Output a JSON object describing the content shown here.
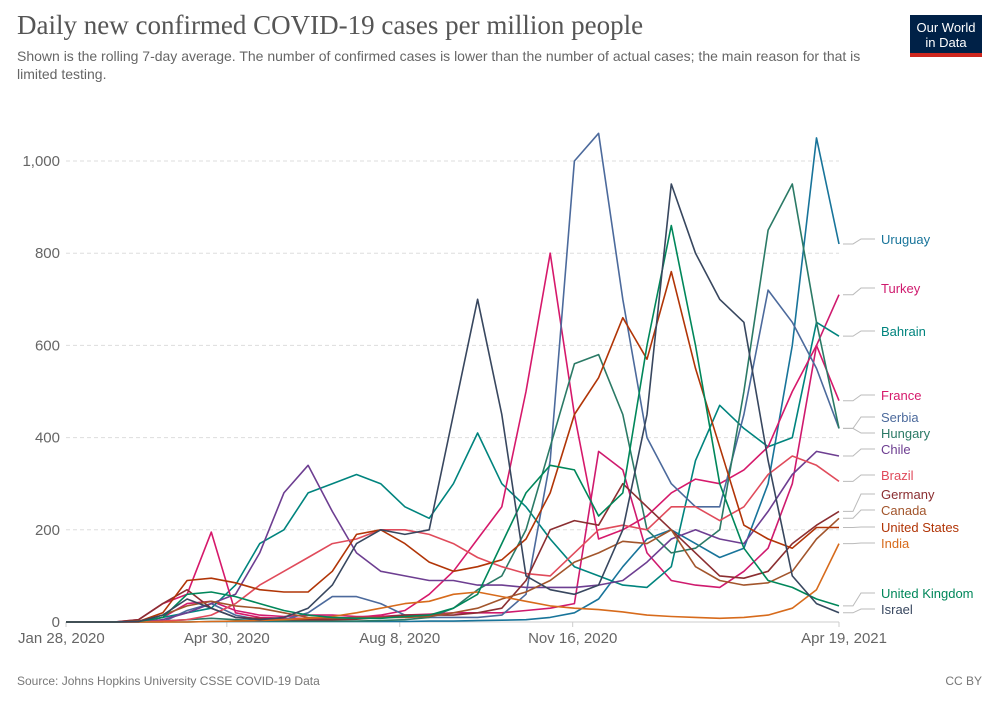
{
  "header": {
    "title": "Daily new confirmed COVID-19 cases per million people",
    "subtitle": "Shown is the rolling 7-day average. The number of confirmed cases is lower than the number of actual cases; the main reason for that is limited testing.",
    "logo": "Our World in Data"
  },
  "footer": {
    "source": "Source: Johns Hopkins University CSSE COVID-19 Data",
    "license": "CC BY"
  },
  "chart_data": {
    "type": "line",
    "title": "Daily new confirmed COVID-19 cases per million people",
    "ylim": [
      0,
      1150
    ],
    "yticks": [
      0,
      200,
      400,
      600,
      800,
      1000
    ],
    "ytick_labels": [
      "0",
      "200",
      "400",
      "600",
      "800",
      "1,000"
    ],
    "xticks": [
      "2020-01-28",
      "2020-04-30",
      "2020-08-08",
      "2020-11-16",
      "2021-04-19"
    ],
    "xtick_labels": [
      "Jan 28, 2020",
      "Apr 30, 2020",
      "Aug 8, 2020",
      "Nov 16, 2020",
      "Apr 19, 2021"
    ],
    "grid": "horizontal dashed",
    "legend": "right, end-of-line labels",
    "x": [
      "2020-01-28",
      "2020-02-11",
      "2020-02-25",
      "2020-03-10",
      "2020-03-24",
      "2020-04-07",
      "2020-04-21",
      "2020-05-05",
      "2020-05-19",
      "2020-06-02",
      "2020-06-16",
      "2020-06-30",
      "2020-07-14",
      "2020-07-28",
      "2020-08-11",
      "2020-08-25",
      "2020-09-08",
      "2020-09-22",
      "2020-10-06",
      "2020-10-20",
      "2020-11-03",
      "2020-11-17",
      "2020-12-01",
      "2020-12-15",
      "2020-12-29",
      "2021-01-12",
      "2021-01-26",
      "2021-02-09",
      "2021-02-23",
      "2021-03-09",
      "2021-03-23",
      "2021-04-06",
      "2021-04-19"
    ],
    "series": [
      {
        "name": "Uruguay",
        "color": "#18749a",
        "values": [
          0,
          0,
          0,
          0,
          0,
          0,
          1,
          1,
          1,
          1,
          1,
          1,
          1,
          1,
          1,
          2,
          2,
          3,
          4,
          5,
          10,
          20,
          50,
          120,
          180,
          200,
          170,
          140,
          160,
          300,
          600,
          1050,
          820
        ]
      },
      {
        "name": "Turkey",
        "color": "#cf1a6e",
        "values": [
          0,
          0,
          0,
          0,
          10,
          40,
          45,
          25,
          15,
          12,
          15,
          15,
          12,
          12,
          15,
          17,
          20,
          20,
          20,
          25,
          30,
          40,
          370,
          330,
          150,
          90,
          80,
          75,
          110,
          160,
          300,
          600,
          710
        ]
      },
      {
        "name": "Bahrain",
        "color": "#00847e",
        "values": [
          0,
          0,
          0,
          0,
          10,
          20,
          30,
          80,
          170,
          200,
          280,
          300,
          320,
          300,
          250,
          225,
          300,
          410,
          300,
          250,
          180,
          120,
          100,
          80,
          75,
          120,
          350,
          470,
          420,
          380,
          400,
          650,
          620
        ]
      },
      {
        "name": "France",
        "color": "#d6196b",
        "values": [
          0,
          0,
          0,
          5,
          40,
          60,
          195,
          20,
          10,
          8,
          8,
          8,
          10,
          15,
          25,
          60,
          110,
          180,
          250,
          500,
          800,
          450,
          180,
          200,
          230,
          280,
          310,
          300,
          330,
          380,
          500,
          600,
          480
        ]
      },
      {
        "name": "Serbia",
        "color": "#4c6a9c",
        "values": [
          0,
          0,
          0,
          0,
          0,
          25,
          40,
          15,
          5,
          5,
          20,
          55,
          55,
          40,
          15,
          10,
          10,
          10,
          15,
          60,
          350,
          1000,
          1060,
          700,
          400,
          300,
          250,
          250,
          450,
          720,
          650,
          550,
          420
        ]
      },
      {
        "name": "Hungary",
        "color": "#2b7a66",
        "values": [
          0,
          0,
          0,
          0,
          2,
          5,
          8,
          5,
          3,
          2,
          2,
          2,
          2,
          3,
          5,
          10,
          30,
          70,
          100,
          200,
          380,
          560,
          580,
          450,
          200,
          150,
          160,
          200,
          500,
          850,
          950,
          650,
          420
        ]
      },
      {
        "name": "Chile",
        "color": "#6d3e91",
        "values": [
          0,
          0,
          0,
          0,
          5,
          20,
          40,
          60,
          150,
          280,
          340,
          240,
          150,
          110,
          100,
          90,
          90,
          80,
          80,
          75,
          75,
          75,
          80,
          90,
          130,
          180,
          200,
          180,
          170,
          240,
          320,
          370,
          360
        ]
      },
      {
        "name": "Brazil",
        "color": "#e04b5b",
        "values": [
          0,
          0,
          0,
          0,
          2,
          5,
          15,
          40,
          80,
          110,
          140,
          170,
          180,
          200,
          200,
          190,
          170,
          140,
          120,
          105,
          100,
          150,
          200,
          210,
          200,
          250,
          250,
          220,
          250,
          320,
          360,
          340,
          305
        ]
      },
      {
        "name": "Germany",
        "color": "#8b2e31",
        "values": [
          0,
          0,
          0,
          5,
          40,
          70,
          30,
          10,
          8,
          5,
          5,
          5,
          6,
          10,
          15,
          15,
          15,
          20,
          30,
          90,
          200,
          220,
          210,
          300,
          250,
          200,
          150,
          100,
          95,
          110,
          170,
          210,
          240
        ]
      },
      {
        "name": "Canada",
        "color": "#a2552c",
        "values": [
          0,
          0,
          0,
          2,
          15,
          35,
          45,
          35,
          30,
          20,
          10,
          8,
          10,
          10,
          10,
          12,
          20,
          30,
          50,
          65,
          90,
          130,
          150,
          175,
          170,
          200,
          120,
          90,
          80,
          85,
          110,
          180,
          225
        ]
      },
      {
        "name": "United States",
        "color": "#b13507",
        "values": [
          0,
          0,
          0,
          1,
          20,
          90,
          95,
          85,
          70,
          65,
          65,
          110,
          190,
          200,
          170,
          130,
          110,
          120,
          135,
          180,
          280,
          450,
          530,
          660,
          570,
          760,
          550,
          380,
          210,
          180,
          160,
          205,
          205
        ]
      },
      {
        "name": "India",
        "color": "#d76b1c",
        "values": [
          0,
          0,
          0,
          0,
          0,
          0,
          1,
          2,
          3,
          5,
          8,
          12,
          20,
          30,
          40,
          45,
          60,
          65,
          55,
          45,
          35,
          30,
          27,
          22,
          15,
          12,
          10,
          8,
          10,
          15,
          30,
          70,
          170
        ]
      },
      {
        "name": "United Kingdom",
        "color": "#00875a",
        "values": [
          0,
          0,
          0,
          1,
          10,
          60,
          65,
          55,
          40,
          25,
          15,
          10,
          8,
          8,
          12,
          15,
          30,
          60,
          170,
          280,
          340,
          330,
          230,
          280,
          600,
          860,
          600,
          300,
          160,
          90,
          75,
          50,
          35
        ]
      },
      {
        "name": "Israel",
        "color": "#38475f",
        "values": [
          0,
          0,
          0,
          1,
          15,
          50,
          30,
          10,
          5,
          10,
          30,
          80,
          170,
          200,
          190,
          200,
          450,
          700,
          450,
          100,
          70,
          60,
          80,
          200,
          450,
          950,
          800,
          700,
          650,
          350,
          100,
          40,
          20
        ]
      }
    ]
  }
}
